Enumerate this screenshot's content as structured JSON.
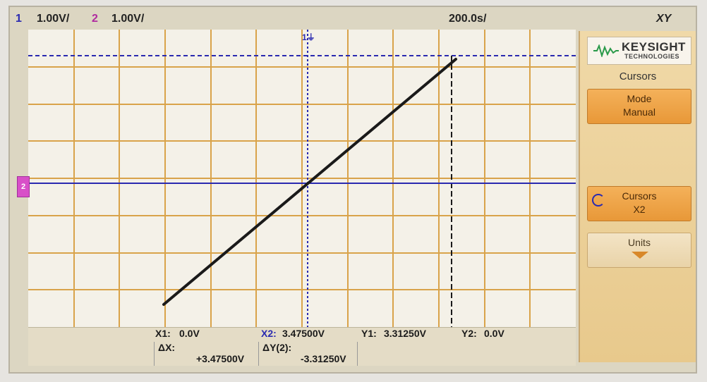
{
  "topbar": {
    "ch1_num": "1",
    "ch1_scale": "1.00V/",
    "ch2_num": "2",
    "ch2_scale": "1.00V/",
    "time_scale": "200.0s/",
    "mode": "XY"
  },
  "markers": {
    "ch1_ground": "1",
    "ch2_ground": "2"
  },
  "panel": {
    "brand": "KEYSIGHT",
    "brand_sub": "TECHNOLOGIES",
    "menu_title": "Cursors",
    "mode_label": "Mode",
    "mode_value": "Manual",
    "cursors_label": "Cursors",
    "cursors_value": "X2",
    "units_label": "Units"
  },
  "readouts": {
    "x1_label": "X1:",
    "x1_value": "0.0V",
    "x2_label": "X2:",
    "x2_value": "3.47500V",
    "y1_label": "Y1:",
    "y1_value": "3.31250V",
    "y2_label": "Y2:",
    "y2_value": "0.0V",
    "dx_label": "ΔX:",
    "dx_value": "+3.47500V",
    "dy_label": "ΔY(2):",
    "dy_value": "-3.31250V"
  },
  "colors": {
    "trace": "#1a1a1a",
    "cursor": "#2a2ab0",
    "grid": "#d9a34a",
    "softkey": "#f4b15a"
  }
}
